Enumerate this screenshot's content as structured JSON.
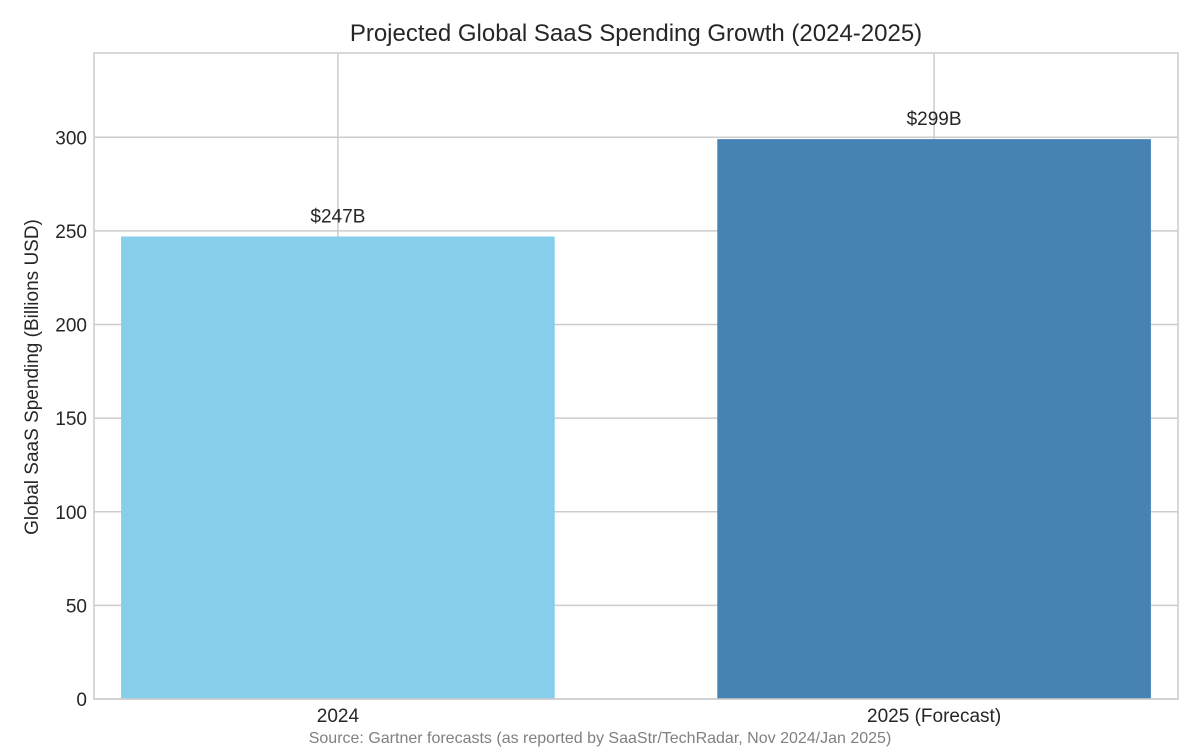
{
  "chart_data": {
    "type": "bar",
    "title": "Projected Global SaaS Spending Growth (2024-2025)",
    "xlabel": "",
    "ylabel": "Global SaaS Spending (Billions USD)",
    "categories": [
      "2024",
      "2025 (Forecast)"
    ],
    "values": [
      247,
      299
    ],
    "data_labels": [
      "$247B",
      "$299B"
    ],
    "bar_colors": [
      "#87ceeb",
      "#4682b4"
    ],
    "ylim": [
      0,
      345
    ],
    "yticks": [
      0,
      50,
      100,
      150,
      200,
      250,
      300
    ],
    "ytick_labels": [
      "0",
      "50",
      "100",
      "150",
      "200",
      "250",
      "300"
    ],
    "grid": true,
    "source_note": "Source: Gartner forecasts (as reported by SaaStr/TechRadar, Nov 2024/Jan 2025)"
  },
  "colors": {
    "grid": "#cccccc",
    "frame": "#cccccc",
    "text": "#262626",
    "source_text": "#808080"
  }
}
